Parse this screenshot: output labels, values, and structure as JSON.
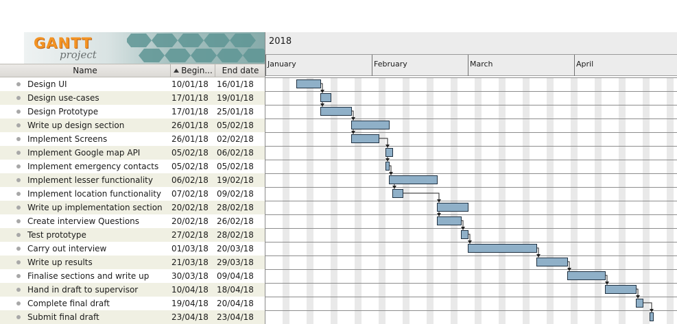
{
  "logo": {
    "word": "GANTT",
    "sub": "project"
  },
  "columns": {
    "name": "Name",
    "begin": "Begin...",
    "end": "End date",
    "sort_icon": "sort-ascending-icon"
  },
  "timeline": {
    "year": "2018",
    "months": [
      "January",
      "February",
      "March",
      "April"
    ]
  },
  "colors": {
    "bar_fill": "#8fb0c8",
    "bar_stroke": "#1e2f3f",
    "row_alt": "#f0f0e3",
    "weekend": "#e9e9e9"
  },
  "tasks": [
    {
      "name": "Design UI",
      "begin": "10/01/18",
      "end": "16/01/18"
    },
    {
      "name": "Design use-cases",
      "begin": "17/01/18",
      "end": "19/01/18"
    },
    {
      "name": "Design Prototype",
      "begin": "17/01/18",
      "end": "25/01/18"
    },
    {
      "name": "Write up design section",
      "begin": "26/01/18",
      "end": "05/02/18"
    },
    {
      "name": "Implement Screens",
      "begin": "26/01/18",
      "end": "02/02/18"
    },
    {
      "name": "Implement Google map API",
      "begin": "05/02/18",
      "end": "06/02/18"
    },
    {
      "name": "Implement emergency contacts",
      "begin": "05/02/18",
      "end": "05/02/18"
    },
    {
      "name": "Implement lesser functionality",
      "begin": "06/02/18",
      "end": "19/02/18"
    },
    {
      "name": "Implement location functionality",
      "begin": "07/02/18",
      "end": "09/02/18"
    },
    {
      "name": "Write up implementation section",
      "begin": "20/02/18",
      "end": "28/02/18"
    },
    {
      "name": "Create interview Questions",
      "begin": "20/02/18",
      "end": "26/02/18"
    },
    {
      "name": "Test prototype",
      "begin": "27/02/18",
      "end": "28/02/18"
    },
    {
      "name": "Carry out interview",
      "begin": "01/03/18",
      "end": "20/03/18"
    },
    {
      "name": "Write up results",
      "begin": "21/03/18",
      "end": "29/03/18"
    },
    {
      "name": "Finalise sections and write up",
      "begin": "30/03/18",
      "end": "09/04/18"
    },
    {
      "name": "Hand in draft to supervisor",
      "begin": "10/04/18",
      "end": "18/04/18"
    },
    {
      "name": "Complete final draft",
      "begin": "19/04/18",
      "end": "20/04/18"
    },
    {
      "name": "Submit final draft",
      "begin": "23/04/18",
      "end": "23/04/18"
    }
  ],
  "dependencies": [
    [
      0,
      1
    ],
    [
      1,
      2
    ],
    [
      2,
      3
    ],
    [
      3,
      4
    ],
    [
      4,
      5
    ],
    [
      5,
      6
    ],
    [
      6,
      7
    ],
    [
      7,
      8
    ],
    [
      8,
      9
    ],
    [
      9,
      10
    ],
    [
      10,
      11
    ],
    [
      11,
      12
    ],
    [
      12,
      13
    ],
    [
      13,
      14
    ],
    [
      14,
      15
    ],
    [
      15,
      16
    ],
    [
      16,
      17
    ]
  ]
}
